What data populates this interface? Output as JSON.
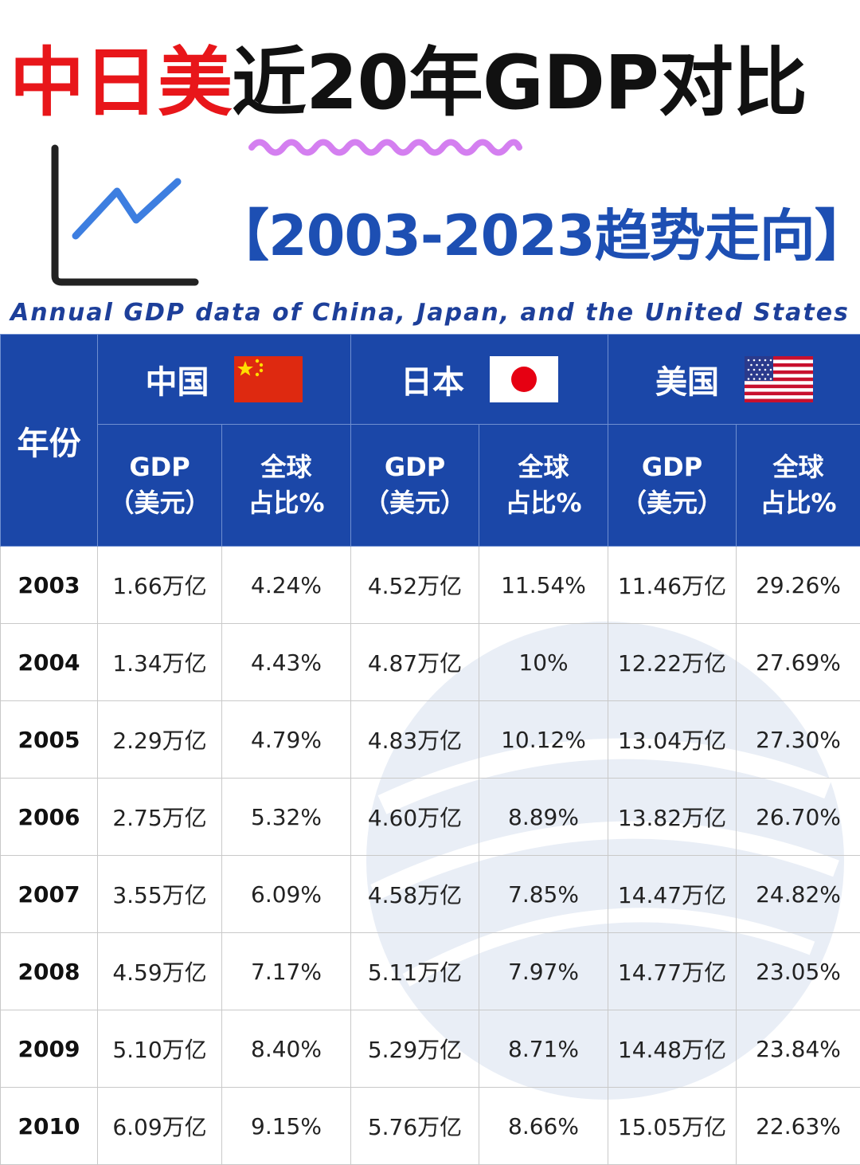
{
  "title": {
    "red_part": "中日美",
    "black_part": "近20年GDP对比"
  },
  "subtitle": "【2003-2023趋势走向】",
  "en_subtitle": "Annual GDP data of China, Japan, and the United States",
  "table": {
    "year_header": "年份",
    "countries": [
      {
        "name": "中国",
        "flag": "china-flag-icon"
      },
      {
        "name": "日本",
        "flag": "japan-flag-icon"
      },
      {
        "name": "美国",
        "flag": "usa-flag-icon"
      }
    ],
    "sub_headers": {
      "gdp_line1": "GDP",
      "gdp_line2": "（美元）",
      "share_line1": "全球",
      "share_line2": "占比%"
    },
    "rows": [
      {
        "year": "2003",
        "cn_gdp": "1.66万亿",
        "cn_share": "4.24%",
        "jp_gdp": "4.52万亿",
        "jp_share": "11.54%",
        "us_gdp": "11.46万亿",
        "us_share": "29.26%"
      },
      {
        "year": "2004",
        "cn_gdp": "1.34万亿",
        "cn_share": "4.43%",
        "jp_gdp": "4.87万亿",
        "jp_share": "10%",
        "us_gdp": "12.22万亿",
        "us_share": "27.69%"
      },
      {
        "year": "2005",
        "cn_gdp": "2.29万亿",
        "cn_share": "4.79%",
        "jp_gdp": "4.83万亿",
        "jp_share": "10.12%",
        "us_gdp": "13.04万亿",
        "us_share": "27.30%"
      },
      {
        "year": "2006",
        "cn_gdp": "2.75万亿",
        "cn_share": "5.32%",
        "jp_gdp": "4.60万亿",
        "jp_share": "8.89%",
        "us_gdp": "13.82万亿",
        "us_share": "26.70%"
      },
      {
        "year": "2007",
        "cn_gdp": "3.55万亿",
        "cn_share": "6.09%",
        "jp_gdp": "4.58万亿",
        "jp_share": "7.85%",
        "us_gdp": "14.47万亿",
        "us_share": "24.82%"
      },
      {
        "year": "2008",
        "cn_gdp": "4.59万亿",
        "cn_share": "7.17%",
        "jp_gdp": "5.11万亿",
        "jp_share": "7.97%",
        "us_gdp": "14.77万亿",
        "us_share": "23.05%"
      },
      {
        "year": "2009",
        "cn_gdp": "5.10万亿",
        "cn_share": "8.40%",
        "jp_gdp": "5.29万亿",
        "jp_share": "8.71%",
        "us_gdp": "14.48万亿",
        "us_share": "23.84%"
      },
      {
        "year": "2010",
        "cn_gdp": "6.09万亿",
        "cn_share": "9.15%",
        "jp_gdp": "5.76万亿",
        "jp_share": "8.66%",
        "us_gdp": "15.05万亿",
        "us_share": "22.63%"
      }
    ]
  },
  "colors": {
    "title_red": "#e8161a",
    "title_black": "#111111",
    "subtitle_blue": "#1d4fb3",
    "header_blue": "#1b47a8"
  }
}
